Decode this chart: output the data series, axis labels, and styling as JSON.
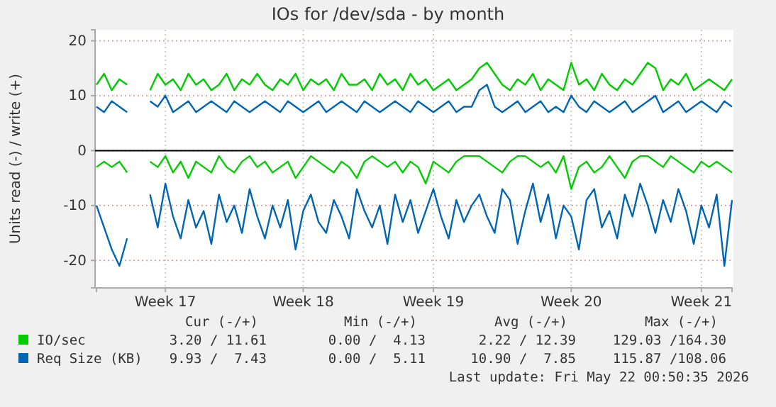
{
  "chart_data": {
    "type": "line",
    "title": "IOs for /dev/sda - by month",
    "ylabel": "Units read (-) / write (+)",
    "categories": [
      null,
      null,
      null,
      null,
      null,
      null,
      null,
      null,
      null,
      "Week 17",
      null,
      null,
      null,
      null,
      null,
      null,
      null,
      null,
      null,
      null,
      null,
      null,
      null,
      null,
      null,
      null,
      null,
      "Week 18",
      null,
      null,
      null,
      null,
      null,
      null,
      null,
      null,
      null,
      null,
      null,
      null,
      null,
      null,
      null,
      null,
      "Week 19",
      null,
      null,
      null,
      null,
      null,
      null,
      null,
      null,
      null,
      null,
      null,
      null,
      null,
      null,
      null,
      null,
      null,
      "Week 20",
      null,
      null,
      null,
      null,
      null,
      null,
      null,
      null,
      null,
      null,
      null,
      null,
      null,
      null,
      null,
      null,
      "Week 21",
      null,
      null,
      null,
      null
    ],
    "ylim": [
      -25,
      22
    ],
    "yticks": [
      -20,
      -10,
      0,
      10,
      20
    ],
    "grid": true,
    "legend": "bottom",
    "line_style": "solid",
    "marker": "none",
    "ref_lines": [
      {
        "axis": "y",
        "value": 0,
        "color": "#000000"
      }
    ],
    "series": [
      {
        "name": "IO/sec",
        "color": "#00cc00",
        "values": [
          12,
          14,
          11,
          13,
          12,
          null,
          null,
          11,
          14,
          12,
          13,
          11,
          14,
          12,
          13,
          11,
          12,
          14,
          11,
          13,
          12,
          14,
          12,
          11,
          13,
          12,
          14,
          11,
          13,
          12,
          13,
          11,
          14,
          12,
          12,
          13,
          11,
          14,
          12,
          13,
          11,
          14,
          12,
          13,
          11,
          12,
          13,
          11,
          12,
          13,
          15,
          16,
          14,
          12,
          11,
          13,
          12,
          14,
          11,
          13,
          12,
          11,
          16,
          12,
          13,
          11,
          14,
          12,
          11,
          13,
          12,
          14,
          16,
          15,
          11,
          13,
          12,
          14,
          11,
          12,
          13,
          12,
          11,
          13
        ]
      },
      {
        "color": "#00cc00",
        "values": [
          -3,
          -2,
          -3,
          -2,
          -4,
          null,
          null,
          -2,
          -3,
          -1,
          -4,
          -2,
          -5,
          -2,
          -3,
          -4,
          -1,
          -3,
          -4,
          -2,
          -1,
          -3,
          -2,
          -4,
          -3,
          -2,
          -5,
          -3,
          -1,
          -2,
          -3,
          -4,
          -2,
          -3,
          -5,
          -2,
          -1,
          -2,
          -3,
          -2,
          -4,
          -2,
          -3,
          -6,
          -2,
          -3,
          -4,
          -2,
          -1,
          -1,
          -1,
          -2,
          -3,
          -4,
          -2,
          -1,
          -1,
          -2,
          -3,
          -2,
          -4,
          -1,
          -7,
          -3,
          -2,
          -4,
          -3,
          -1,
          -3,
          -5,
          -2,
          -1,
          -1,
          -2,
          -3,
          -1,
          -2,
          -3,
          -4,
          -2,
          -3,
          -2,
          -3,
          -4
        ]
      },
      {
        "name": "Req Size (KB)",
        "color": "#0066b3",
        "values": [
          8,
          7,
          9,
          8,
          7,
          null,
          null,
          9,
          8,
          10,
          7,
          8,
          9,
          7,
          8,
          9,
          8,
          7,
          9,
          8,
          7,
          8,
          9,
          8,
          7,
          9,
          8,
          7,
          8,
          9,
          7,
          8,
          9,
          8,
          7,
          9,
          8,
          7,
          8,
          9,
          8,
          7,
          9,
          8,
          7,
          8,
          9,
          7,
          8,
          8,
          11,
          12,
          8,
          7,
          8,
          9,
          7,
          8,
          9,
          7,
          8,
          7,
          10,
          8,
          7,
          9,
          8,
          7,
          8,
          9,
          7,
          8,
          9,
          10,
          7,
          8,
          9,
          7,
          8,
          9,
          8,
          7,
          9,
          8
        ]
      },
      {
        "color": "#0066b3",
        "values": [
          -10,
          -14,
          -18,
          -21,
          -16,
          null,
          null,
          -8,
          -14,
          -6,
          -12,
          -16,
          -9,
          -14,
          -11,
          -17,
          -8,
          -13,
          -10,
          -15,
          -7,
          -12,
          -16,
          -10,
          -14,
          -9,
          -18,
          -11,
          -8,
          -13,
          -15,
          -9,
          -12,
          -16,
          -7,
          -11,
          -14,
          -10,
          -17,
          -8,
          -13,
          -9,
          -15,
          -11,
          -7,
          -12,
          -16,
          -9,
          -13,
          -10,
          -8,
          -12,
          -15,
          -7,
          -9,
          -17,
          -11,
          -6,
          -13,
          -8,
          -16,
          -10,
          -12,
          -18,
          -9,
          -7,
          -14,
          -11,
          -16,
          -8,
          -12,
          -6,
          -10,
          -15,
          -9,
          -13,
          -7,
          -11,
          -17,
          -10,
          -14,
          -8,
          -21,
          -9
        ]
      }
    ],
    "annotations": [
      "Cur (-/+)",
      "Min (-/+)",
      "Avg (-/+)",
      "Max (-/+)",
      "3.20 / 11.61",
      "0.00 /  4.13",
      "2.22 / 12.39",
      "129.03 /164.30",
      "9.93 /  7.43",
      "0.00 /  5.11",
      "10.90 /  7.85",
      "115.87 /108.06",
      "Last update: Fri May 22 00:50:35 2026"
    ]
  }
}
